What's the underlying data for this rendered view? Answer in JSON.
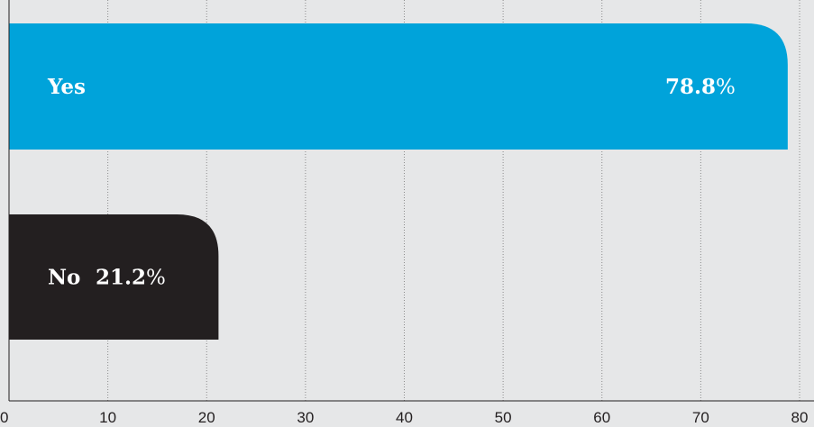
{
  "chart_data": {
    "type": "bar",
    "orientation": "horizontal",
    "categories": [
      "Yes",
      "No"
    ],
    "values": [
      78.8,
      21.2
    ],
    "value_labels": [
      "78.8",
      "21.2"
    ],
    "value_unit": "%",
    "xlim": [
      0,
      80
    ],
    "x_ticks": [
      0,
      10,
      20,
      30,
      40,
      50,
      60,
      70,
      80
    ],
    "grid": true,
    "colors": {
      "background": "#e6e7e8",
      "bars": [
        "#00a3da",
        "#231f20"
      ],
      "text": "#ffffff",
      "axis": "#231f20",
      "grid": "#8c8c8c"
    }
  }
}
